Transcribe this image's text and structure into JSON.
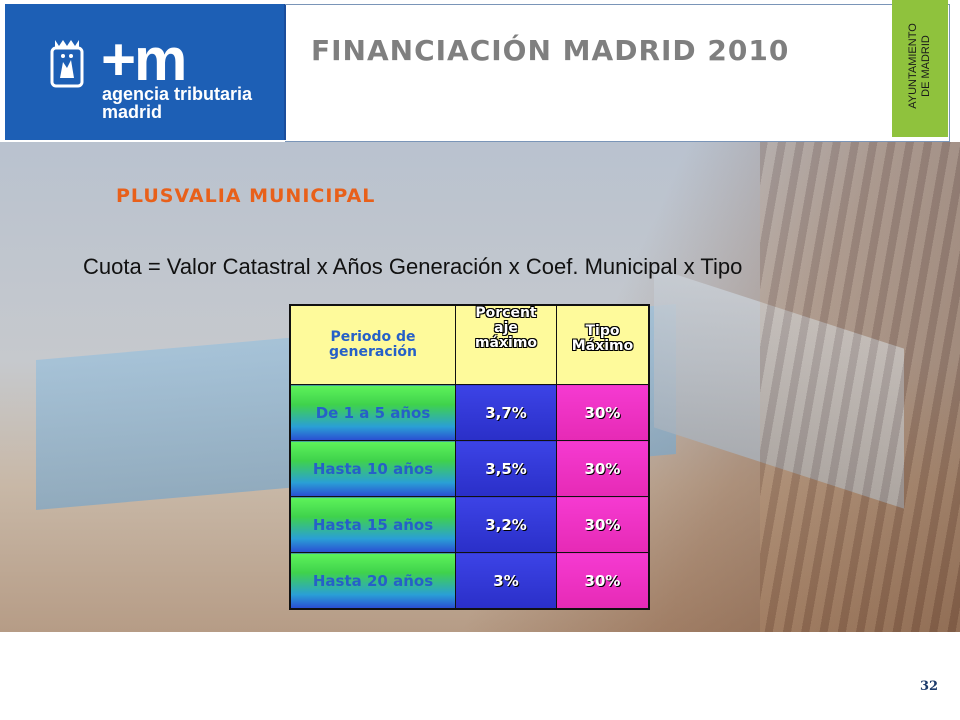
{
  "header": {
    "logo": {
      "brand": "+m",
      "line1": "agencia tributaria",
      "line2": "madrid",
      "color": "#1d5fb5"
    },
    "title": "FINANCIACIÓN MADRID 2010",
    "ayuntamiento": {
      "line1": "AYUNTAMIENTO",
      "line2": "DE MADRID",
      "color": "#8fc23d"
    }
  },
  "section": {
    "title": "PLUSVALIA MUNICIPAL",
    "title_color": "#e8601a"
  },
  "formula": "Cuota = Valor Catastral x Años Generación x Coef. Municipal x Tipo",
  "table": {
    "headers": [
      "Periodo de generación",
      "Porcentaje máximo",
      "Tipo Máximo"
    ],
    "header_lines": [
      [
        "Periodo de",
        "generación"
      ],
      [
        "Porcent",
        "aje",
        "máximo"
      ],
      [
        "Tipo",
        "Máximo"
      ]
    ],
    "rows": [
      [
        "De 1 a 5 años",
        "3,7%",
        "30%"
      ],
      [
        "Hasta 10 años",
        "3,5%",
        "30%"
      ],
      [
        "Hasta 15 años",
        "3,2%",
        "30%"
      ],
      [
        "Hasta 20 años",
        "3%",
        "30%"
      ]
    ]
  },
  "page_number": "32"
}
